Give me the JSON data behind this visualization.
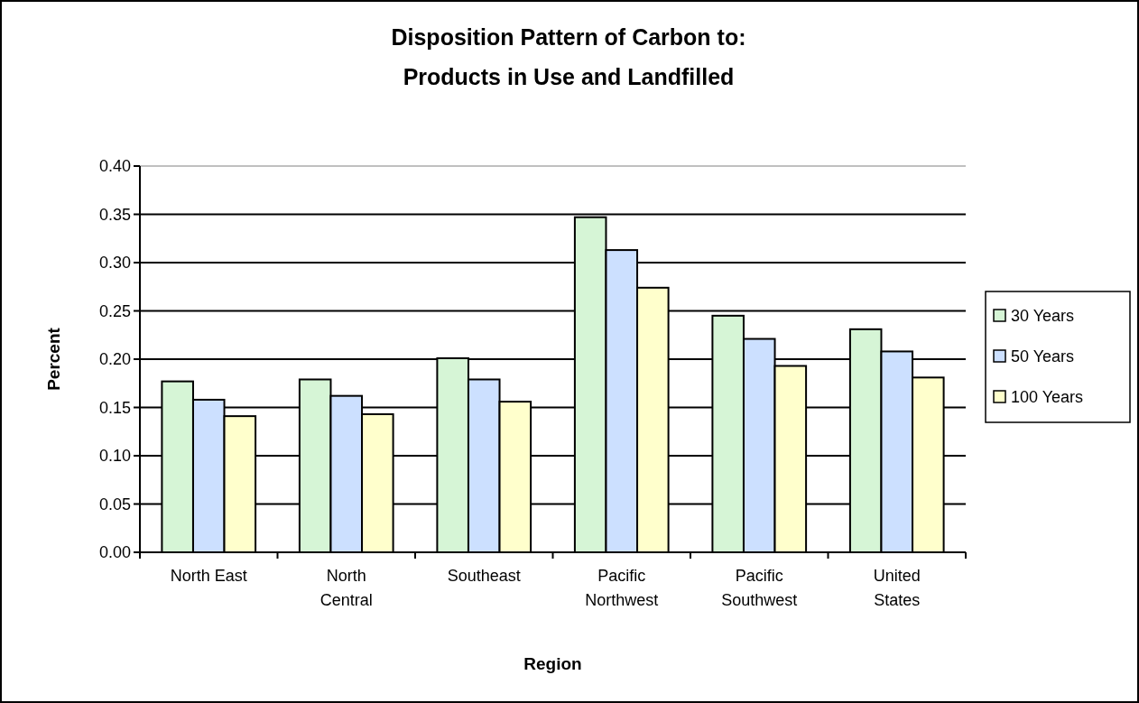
{
  "chart_data": {
    "type": "bar",
    "title": "Disposition Pattern of Carbon to:\nProducts in Use and Landfilled",
    "xlabel": "Region",
    "ylabel": "Percent",
    "categories": [
      "North East",
      "North\nCentral",
      "Southeast",
      "Pacific\nNorthwest",
      "Pacific\nSouthwest",
      "United\nStates"
    ],
    "series": [
      {
        "name": "30 Years",
        "color": "#d6f5d6",
        "values": [
          0.177,
          0.179,
          0.201,
          0.347,
          0.245,
          0.231
        ]
      },
      {
        "name": "50 Years",
        "color": "#cce0ff",
        "values": [
          0.158,
          0.162,
          0.179,
          0.313,
          0.221,
          0.208
        ]
      },
      {
        "name": "100 Years",
        "color": "#ffffcc",
        "values": [
          0.141,
          0.143,
          0.156,
          0.274,
          0.193,
          0.181
        ]
      }
    ],
    "ylim": [
      0,
      0.4
    ],
    "yticks": [
      {
        "value": 0,
        "label": "0.00"
      },
      {
        "value": 0.05,
        "label": "0.05"
      },
      {
        "value": 0.1,
        "label": "0.10"
      },
      {
        "value": 0.15,
        "label": "0.15"
      },
      {
        "value": 0.2,
        "label": "0.20"
      },
      {
        "value": 0.25,
        "label": "0.25"
      },
      {
        "value": 0.3,
        "label": "0.30"
      },
      {
        "value": 0.35,
        "label": "0.35"
      },
      {
        "value": 0.4,
        "label": "0.40"
      }
    ],
    "grid": "y",
    "legend": "right"
  }
}
